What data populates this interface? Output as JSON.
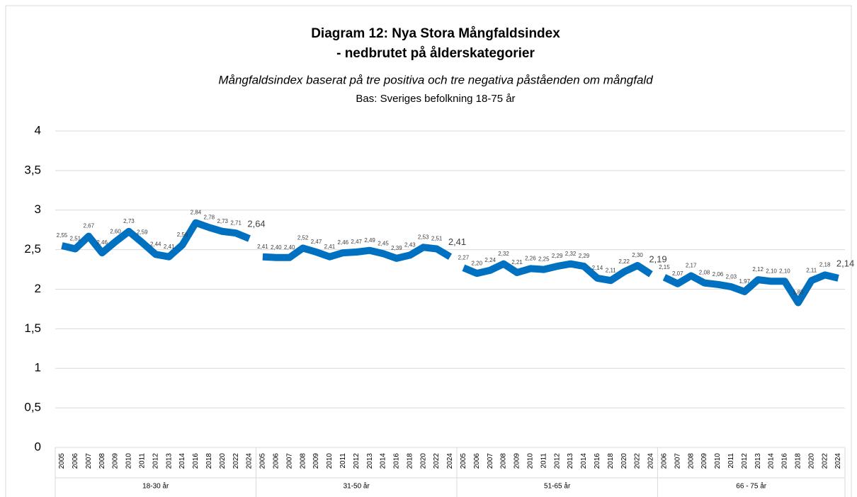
{
  "chart_data": {
    "type": "line",
    "title": [
      "Diagram 12: Nya Stora Mångfaldsindex",
      "- nedbrutet på ålderskategorier"
    ],
    "subtitle": "Mångfaldsindex baserat på tre positiva och tre negativa påståenden om mångfald",
    "note": "Bas: Sveriges befolkning 18-75 år",
    "color": "#0070c0",
    "grid": true,
    "ylim": [
      0,
      4
    ],
    "yticks": [
      0,
      {
        "value": 0.5,
        "label": "0,5"
      },
      1,
      {
        "value": 1.5,
        "label": "1,5"
      },
      2,
      {
        "value": 2.5,
        "label": "2,5"
      },
      3,
      {
        "value": 3.5,
        "label": "3,5"
      },
      4
    ],
    "groups": [
      {
        "name": "18-30 år",
        "categories": [
          "2005",
          "2006",
          "2007",
          "2008",
          "2009",
          "2010",
          "2011",
          "2012",
          "2013",
          "2014",
          "2016",
          "2018",
          "2020",
          "2022",
          "2024"
        ],
        "values": [
          2.55,
          2.51,
          2.67,
          2.46,
          2.6,
          2.73,
          2.59,
          2.44,
          2.41,
          2.56,
          2.84,
          2.78,
          2.73,
          2.71,
          2.64
        ],
        "value_labels": [
          "2,55",
          "2,51",
          "2,67",
          "2,46",
          "2,60",
          "2,73",
          "2,59",
          "2,44",
          "2,41",
          "2,56",
          "2,84",
          "2,78",
          "2,73",
          "2,71",
          "2,64"
        ]
      },
      {
        "name": "31-50 år",
        "categories": [
          "2005",
          "2006",
          "2007",
          "2008",
          "2009",
          "2010",
          "2011",
          "2012",
          "2013",
          "2014",
          "2016",
          "2018",
          "2020",
          "2022",
          "2024"
        ],
        "values": [
          2.41,
          2.4,
          2.4,
          2.52,
          2.47,
          2.41,
          2.46,
          2.47,
          2.49,
          2.45,
          2.39,
          2.43,
          2.53,
          2.51,
          2.41
        ],
        "value_labels": [
          "2,41",
          "2,40",
          "2,40",
          "2,52",
          "2,47",
          "2,41",
          "2,46",
          "2,47",
          "2,49",
          "2,45",
          "2,39",
          "2,43",
          "2,53",
          "2,51",
          "2,41"
        ]
      },
      {
        "name": "51-65 år",
        "categories": [
          "2005",
          "2006",
          "2007",
          "2008",
          "2009",
          "2010",
          "2011",
          "2012",
          "2013",
          "2014",
          "2016",
          "2018",
          "2020",
          "2022",
          "2024"
        ],
        "values": [
          2.27,
          2.2,
          2.24,
          2.32,
          2.21,
          2.26,
          2.25,
          2.29,
          2.32,
          2.29,
          2.14,
          2.11,
          2.22,
          2.3,
          2.19
        ],
        "value_labels": [
          "2,27",
          "2,20",
          "2,24",
          "2,32",
          "2,21",
          "2,26",
          "2,25",
          "2,29",
          "2,32",
          "2,29",
          "2,14",
          "2,11",
          "2,22",
          "2,30",
          "2,19"
        ]
      },
      {
        "name": "66 - 75 år",
        "categories": [
          "2006",
          "2007",
          "2008",
          "2009",
          "2010",
          "2011",
          "2012",
          "2013",
          "2014",
          "2016",
          "2018",
          "2020",
          "2022",
          "2024"
        ],
        "values": [
          2.15,
          2.07,
          2.17,
          2.08,
          2.06,
          2.03,
          1.97,
          2.12,
          2.1,
          2.1,
          1.83,
          2.11,
          2.18,
          2.14
        ],
        "value_labels": [
          "2,15",
          "2,07",
          "2,17",
          "2,08",
          "2,06",
          "2,03",
          "1,97",
          "2,12",
          "2,10",
          "2,10",
          "1,83",
          "2,11",
          "2,18",
          "2,14"
        ]
      }
    ]
  }
}
